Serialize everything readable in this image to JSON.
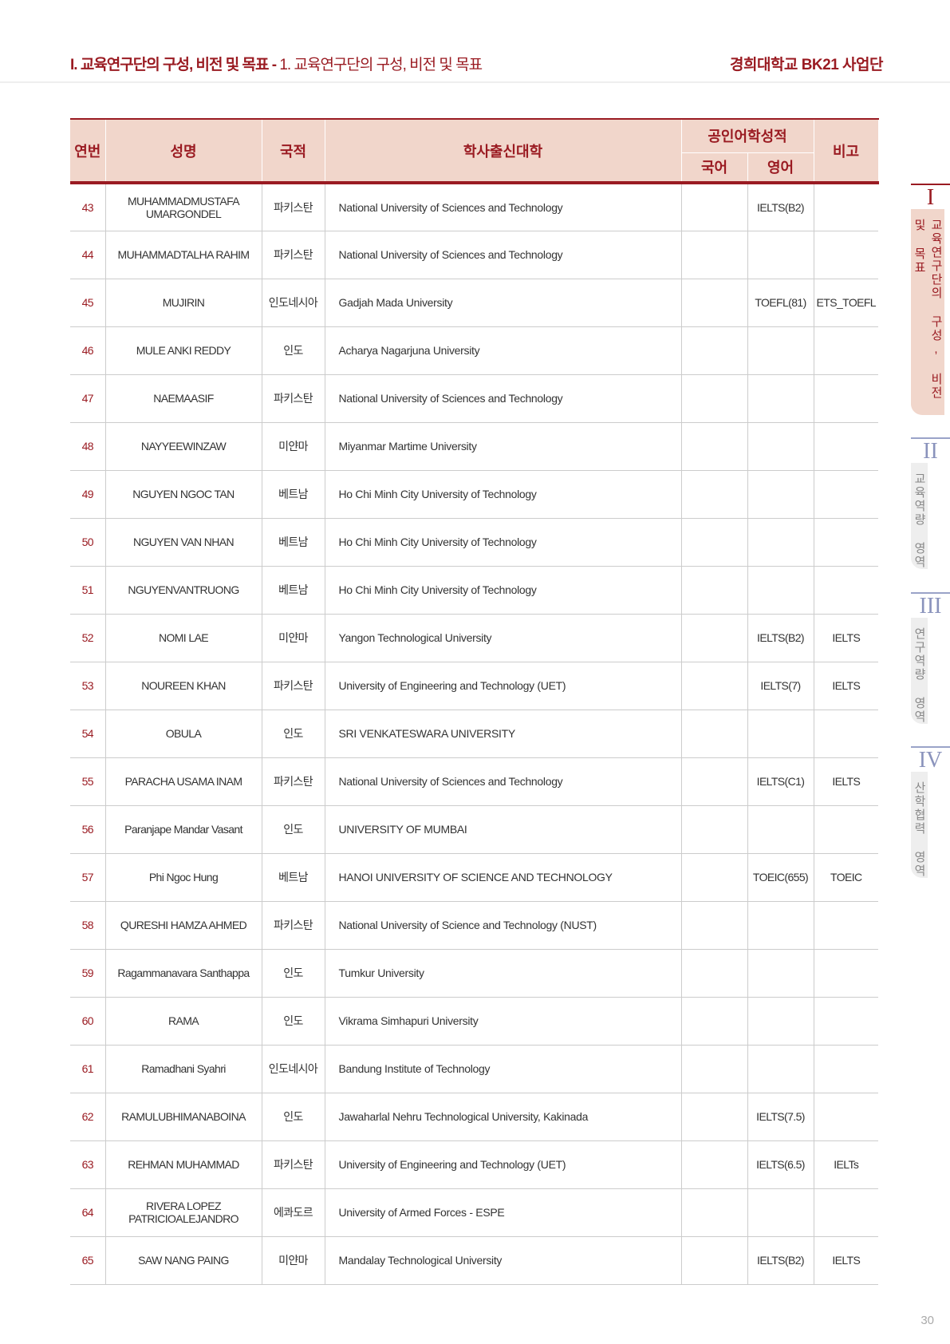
{
  "header": {
    "section_bold": "I. 교육연구단의 구성, 비전 및 목표 -",
    "section_sub": " 1. 교육연구단의 구성, 비전 및 목표",
    "org": "경희대학교 BK21 사업단"
  },
  "table": {
    "headers": {
      "no": "연번",
      "name": "성명",
      "nation": "국적",
      "univ": "학사출신대학",
      "lang": "공인어학성적",
      "kor": "국어",
      "eng": "영어",
      "remark": "비고"
    },
    "rows": [
      [
        "43",
        "MUHAMMADMUSTAFA UMARGONDEL",
        "파키스탄",
        "National University of Sciences and Technology",
        "",
        "IELTS(B2)",
        ""
      ],
      [
        "44",
        "MUHAMMADTALHA RAHIM",
        "파키스탄",
        "National University of Sciences and Technology",
        "",
        "",
        ""
      ],
      [
        "45",
        "MUJIRIN",
        "인도네시아",
        "Gadjah Mada University",
        "",
        "TOEFL(81)",
        "ETS_TOEFL"
      ],
      [
        "46",
        "MULE ANKI REDDY",
        "인도",
        "Acharya Nagarjuna University",
        "",
        "",
        ""
      ],
      [
        "47",
        "NAEMAASIF",
        "파키스탄",
        "National University of Sciences and Technology",
        "",
        "",
        ""
      ],
      [
        "48",
        "NAYYEEWINZAW",
        "미얀마",
        "Miyanmar Martime University",
        "",
        "",
        ""
      ],
      [
        "49",
        "NGUYEN NGOC TAN",
        "베트남",
        "Ho Chi Minh City University of Technology",
        "",
        "",
        ""
      ],
      [
        "50",
        "NGUYEN VAN NHAN",
        "베트남",
        "Ho Chi Minh City University of Technology",
        "",
        "",
        ""
      ],
      [
        "51",
        "NGUYENVANTRUONG",
        "베트남",
        "Ho Chi Minh City University of Technology",
        "",
        "",
        ""
      ],
      [
        "52",
        "NOMI LAE",
        "미얀마",
        "Yangon Technological University",
        "",
        "IELTS(B2)",
        "IELTS"
      ],
      [
        "53",
        "NOUREEN KHAN",
        "파키스탄",
        "University of Engineering and Technology (UET)",
        "",
        "IELTS(7)",
        "IELTS"
      ],
      [
        "54",
        "OBULA",
        "인도",
        "SRI VENKATESWARA UNIVERSITY",
        "",
        "",
        ""
      ],
      [
        "55",
        "PARACHA USAMA INAM",
        "파키스탄",
        "National University of Sciences and Technology",
        "",
        "IELTS(C1)",
        "IELTS"
      ],
      [
        "56",
        "Paranjape Mandar Vasant",
        "인도",
        "UNIVERSITY OF MUMBAI",
        "",
        "",
        ""
      ],
      [
        "57",
        "Phi Ngoc Hung",
        "베트남",
        "HANOI UNIVERSITY OF SCIENCE AND TECHNOLOGY",
        "",
        "TOEIC(655)",
        "TOEIC"
      ],
      [
        "58",
        "QURESHI HAMZA AHMED",
        "파키스탄",
        "National University of Science and Technology (NUST)",
        "",
        "",
        ""
      ],
      [
        "59",
        "Ragammanavara Santhappa",
        "인도",
        "Tumkur University",
        "",
        "",
        ""
      ],
      [
        "60",
        "RAMA",
        "인도",
        "Vikrama Simhapuri University",
        "",
        "",
        ""
      ],
      [
        "61",
        "Ramadhani Syahri",
        "인도네시아",
        "Bandung Institute of Technology",
        "",
        "",
        ""
      ],
      [
        "62",
        "RAMULUBHIMANABOINA",
        "인도",
        "Jawaharlal Nehru Technological University, Kakinada",
        "",
        "IELTS(7.5)",
        ""
      ],
      [
        "63",
        "REHMAN MUHAMMAD",
        "파키스탄",
        "University of Engineering and Technology (UET)",
        "",
        "IELTS(6.5)",
        "IELTs"
      ],
      [
        "64",
        "RIVERA LOPEZ PATRICIOALEJANDRO",
        "에콰도르",
        "University of Armed Forces - ESPE",
        "",
        "",
        ""
      ],
      [
        "65",
        "SAW NANG PAING",
        "미얀마",
        "Mandalay Technological University",
        "",
        "IELTS(B2)",
        "IELTS"
      ]
    ]
  },
  "side_tabs": [
    {
      "roman": "I",
      "label": "교육연구단의 구성, 비전 및 목표",
      "active": true
    },
    {
      "roman": "II",
      "label": "교육역량 영역"
    },
    {
      "roman": "III",
      "label": "연구역량 영역"
    },
    {
      "roman": "IV",
      "label": "산학협력 영역"
    }
  ],
  "page_number": "30",
  "colors": {
    "accent": "#9a1b22",
    "header_bg": "#f1d6cb"
  }
}
